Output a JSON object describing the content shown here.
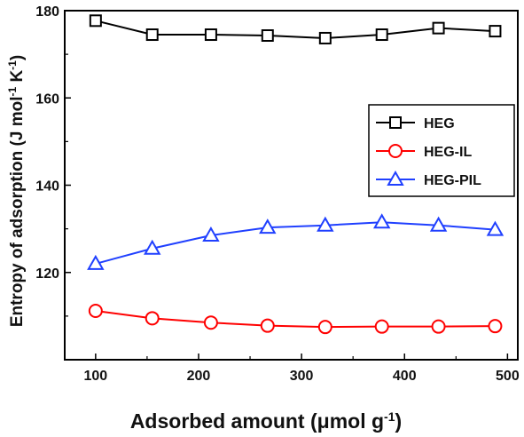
{
  "chart_data": {
    "type": "line",
    "xlabel": "Adsorbed amount (μmol g",
    "xlabel_sup": "-1",
    "xlabel_end": ")",
    "ylabel_main": "Entropy of adsorption (J mol",
    "ylabel_sup1": "-1",
    "ylabel_mid": " K",
    "ylabel_sup2": "-1",
    "ylabel_end": ")",
    "xlim": [
      70,
      510
    ],
    "ylim": [
      100,
      180
    ],
    "xticks": [
      100,
      200,
      300,
      400,
      500
    ],
    "yticks": [
      120,
      140,
      160,
      180
    ],
    "grid": false,
    "legend_position": "right",
    "x": [
      100,
      155,
      212,
      267,
      323,
      378,
      433,
      488
    ],
    "series": [
      {
        "name": "HEG",
        "color": "#000000",
        "marker": "square",
        "values": [
          177.7,
          174.5,
          174.5,
          174.3,
          173.7,
          174.5,
          176.0,
          175.3
        ]
      },
      {
        "name": "HEG-IL",
        "color": "#ff0000",
        "marker": "circle",
        "values": [
          111.2,
          109.5,
          108.5,
          107.8,
          107.5,
          107.6,
          107.6,
          107.7
        ]
      },
      {
        "name": "HEG-PIL",
        "color": "#2040ff",
        "marker": "triangle",
        "values": [
          122.0,
          125.5,
          128.5,
          130.3,
          130.8,
          131.5,
          130.8,
          129.8
        ]
      }
    ]
  }
}
